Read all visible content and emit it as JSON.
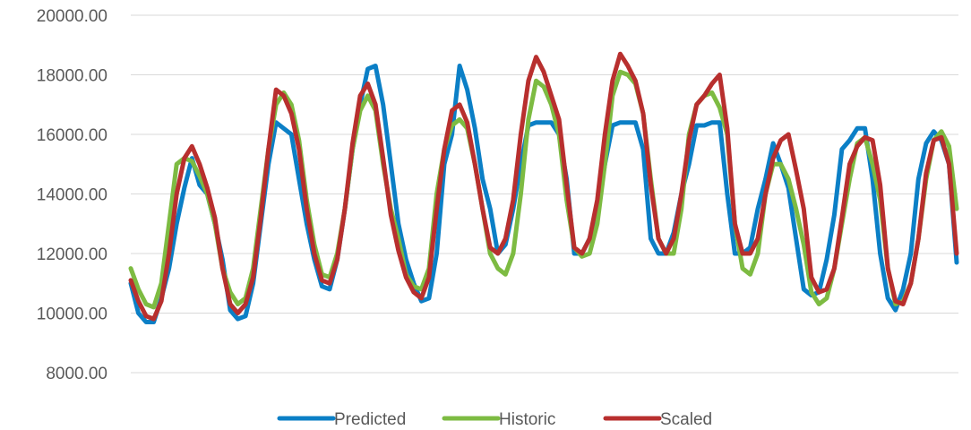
{
  "chart_data": {
    "type": "line",
    "title": "",
    "xlabel": "",
    "ylabel": "",
    "ylim": [
      8000,
      20000
    ],
    "y_ticks": [
      "8000.00",
      "10000.00",
      "12000.00",
      "14000.00",
      "16000.00",
      "18000.00",
      "20000.00"
    ],
    "grid": true,
    "legend_position": "bottom",
    "series": [
      {
        "name": "Predicted",
        "color": "#0b7fc6",
        "values": [
          11000,
          10000,
          9700,
          9700,
          10500,
          11500,
          13000,
          14200,
          15200,
          14300,
          14000,
          13000,
          11800,
          10100,
          9800,
          9900,
          11000,
          13000,
          15000,
          16400,
          16200,
          16000,
          14500,
          13000,
          11800,
          10900,
          10800,
          11800,
          13500,
          15500,
          17000,
          18200,
          18300,
          17000,
          15000,
          13000,
          11800,
          11000,
          10400,
          10500,
          12000,
          15000,
          16000,
          18300,
          17500,
          16200,
          14500,
          13500,
          12000,
          12300,
          13500,
          15000,
          16300,
          16400,
          16400,
          16400,
          16000,
          14500,
          12000,
          12000,
          12500,
          13500,
          15000,
          16300,
          16400,
          16400,
          16400,
          15500,
          12500,
          12000,
          12000,
          12700,
          14000,
          15000,
          16300,
          16300,
          16400,
          16400,
          14000,
          12000,
          12000,
          12200,
          13500,
          14500,
          15700,
          15000,
          14200,
          12500,
          10800,
          10600,
          10700,
          11800,
          13300,
          15500,
          15800,
          16200,
          16200,
          14500,
          12000,
          10500,
          10100,
          10800,
          12000,
          14500,
          15700,
          16100,
          15800,
          15000,
          11700
        ]
      },
      {
        "name": "Historic",
        "color": "#7dbb42",
        "values": [
          11500,
          10800,
          10300,
          10200,
          11000,
          13000,
          15000,
          15200,
          15100,
          14600,
          14000,
          13000,
          11500,
          10700,
          10300,
          10500,
          11500,
          13500,
          15500,
          17000,
          17400,
          17000,
          15800,
          13800,
          12300,
          11300,
          11200,
          12000,
          13500,
          15500,
          16800,
          17300,
          16800,
          15000,
          13500,
          12500,
          11300,
          10900,
          10800,
          11500,
          14000,
          15500,
          16300,
          16500,
          16200,
          15000,
          13500,
          12000,
          11500,
          11300,
          12000,
          14000,
          16500,
          17800,
          17600,
          17000,
          16000,
          13800,
          12200,
          11900,
          12000,
          13000,
          15000,
          17300,
          18100,
          18000,
          17700,
          16700,
          14500,
          12500,
          12000,
          12000,
          13500,
          16000,
          17000,
          17300,
          17400,
          16900,
          16000,
          13000,
          11500,
          11300,
          12000,
          14000,
          15000,
          15000,
          14500,
          13500,
          12300,
          10700,
          10300,
          10500,
          11500,
          13000,
          14500,
          15700,
          15900,
          15000,
          13800,
          11500,
          10300,
          10400,
          11000,
          12500,
          14500,
          15800,
          16100,
          15600,
          13500
        ]
      },
      {
        "name": "Scaled",
        "color": "#b82f2e",
        "values": [
          11100,
          10400,
          9900,
          9800,
          10400,
          12000,
          14000,
          15200,
          15600,
          15000,
          14200,
          13200,
          11500,
          10300,
          10000,
          10300,
          11200,
          13200,
          15500,
          17500,
          17300,
          16700,
          15500,
          13500,
          12000,
          11100,
          11000,
          11800,
          13500,
          15700,
          17300,
          17700,
          17000,
          15200,
          13300,
          12100,
          11200,
          10700,
          10500,
          11200,
          13500,
          15500,
          16800,
          17000,
          16400,
          15000,
          13500,
          12200,
          12000,
          12500,
          13800,
          16000,
          17800,
          18600,
          18100,
          17300,
          16500,
          14300,
          12200,
          12000,
          12500,
          13800,
          16000,
          17800,
          18700,
          18300,
          17800,
          16700,
          14300,
          12500,
          12000,
          12500,
          14000,
          15800,
          17000,
          17300,
          17700,
          18000,
          16200,
          13000,
          12000,
          12000,
          12500,
          14000,
          15200,
          15800,
          16000,
          14800,
          13500,
          11200,
          10700,
          10800,
          11500,
          13200,
          15000,
          15600,
          15900,
          15800,
          14300,
          11500,
          10400,
          10300,
          11000,
          12500,
          14700,
          15800,
          15900,
          15000,
          12000
        ]
      }
    ]
  }
}
